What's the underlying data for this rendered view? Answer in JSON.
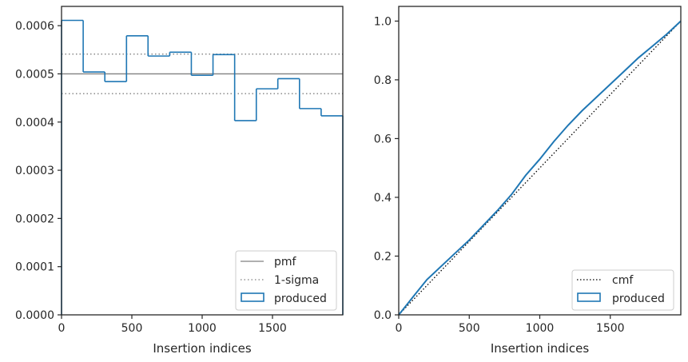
{
  "chart_data": [
    {
      "type": "histogram-step",
      "title": "",
      "xlabel": "Insertion indices",
      "ylabel": "",
      "xlim": [
        0,
        2000
      ],
      "ylim": [
        0,
        0.00064
      ],
      "x_ticks": [
        0,
        500,
        1000,
        1500
      ],
      "y_ticks": [
        0.0,
        0.0001,
        0.0002,
        0.0003,
        0.0004,
        0.0005,
        0.0006
      ],
      "x_tick_labels": [
        "0",
        "500",
        "1000",
        "1500"
      ],
      "y_tick_labels": [
        "0.0000",
        "0.0001",
        "0.0002",
        "0.0003",
        "0.0004",
        "0.0005",
        "0.0006"
      ],
      "pmf": 0.0005,
      "sigma_band": [
        0.000459,
        0.000541
      ],
      "bin_edges": [
        0,
        154,
        308,
        462,
        615,
        769,
        923,
        1077,
        1231,
        1385,
        1538,
        1692,
        1846,
        2000
      ],
      "series": [
        {
          "name": "produced",
          "color": "#1f77b4",
          "values": [
            0.000611,
            0.000504,
            0.000484,
            0.000579,
            0.000537,
            0.000545,
            0.000497,
            0.00054,
            0.000403,
            0.000469,
            0.00049,
            0.000428,
            0.000413
          ]
        }
      ],
      "legend": {
        "position": "bottom-right",
        "entries": [
          {
            "label": "pmf",
            "style": "solid",
            "color": "#808080"
          },
          {
            "label": "1-sigma",
            "style": "dotted",
            "color": "#808080"
          },
          {
            "label": "produced",
            "style": "patch",
            "color": "#1f77b4"
          }
        ]
      }
    },
    {
      "type": "cdf-step",
      "title": "",
      "xlabel": "Insertion indices",
      "ylabel": "",
      "xlim": [
        0,
        2000
      ],
      "ylim": [
        0,
        1.05
      ],
      "x_ticks": [
        0,
        500,
        1000,
        1500
      ],
      "y_ticks": [
        0.0,
        0.2,
        0.4,
        0.6,
        0.8,
        1.0
      ],
      "x_tick_labels": [
        "0",
        "500",
        "1000",
        "1500"
      ],
      "y_tick_labels": [
        "0.0",
        "0.2",
        "0.4",
        "0.6",
        "0.8",
        "1.0"
      ],
      "cmf": {
        "label": "cmf",
        "x": [
          0,
          2000
        ],
        "y": [
          0,
          1.0
        ],
        "style": "dotted",
        "color": "#000000"
      },
      "series": [
        {
          "name": "produced",
          "color": "#1f77b4",
          "x": [
            0,
            100,
            200,
            300,
            400,
            500,
            600,
            700,
            800,
            900,
            1000,
            1100,
            1200,
            1300,
            1400,
            1500,
            1600,
            1700,
            1800,
            1900,
            2000
          ],
          "y": [
            0.0,
            0.06,
            0.12,
            0.165,
            0.21,
            0.255,
            0.305,
            0.355,
            0.41,
            0.475,
            0.53,
            0.59,
            0.645,
            0.695,
            0.74,
            0.785,
            0.83,
            0.875,
            0.915,
            0.955,
            1.0
          ]
        }
      ],
      "legend": {
        "position": "bottom-right",
        "entries": [
          {
            "label": "cmf",
            "style": "dotted",
            "color": "#000000"
          },
          {
            "label": "produced",
            "style": "patch",
            "color": "#1f77b4"
          }
        ]
      }
    }
  ]
}
